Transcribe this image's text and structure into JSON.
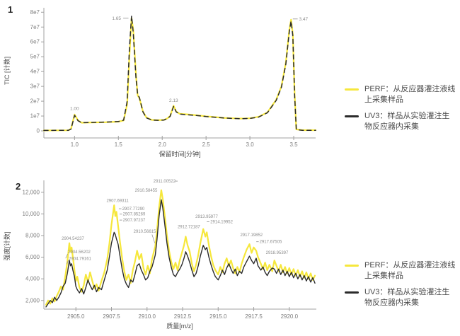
{
  "colors": {
    "perf": "#f6e73c",
    "uv3": "#2b2b2b",
    "axis": "#a0a0a0",
    "tick_text": "#7d7d7d",
    "peak_label_text": "#8c8c8c",
    "legend_text": "#4a4a4a"
  },
  "chart_data": [
    {
      "type": "line",
      "panel_number": "1",
      "xlabel": "保留时间[分钟]",
      "ylabel": "TIC [计数]",
      "xlim": [
        0.65,
        3.75
      ],
      "ylim": [
        0,
        8.3
      ],
      "y_unit_note": "y values in 1e7 counts",
      "grid": false,
      "legend_position": "right",
      "xticks": [
        1.0,
        1.5,
        2.0,
        2.5,
        3.0,
        3.5
      ],
      "xtick_labels": [
        "1.0",
        "1.5",
        "2.0",
        "2.5",
        "3.0",
        "3.5"
      ],
      "ytick_values": [
        0,
        1,
        2,
        3,
        4,
        5,
        6,
        7,
        8
      ],
      "ytick_labels": [
        "0",
        "1e7",
        "2e7",
        "3e7",
        "4e7",
        "5e7",
        "6e7",
        "7e7",
        "8e7"
      ],
      "x": [
        0.65,
        0.93,
        0.96,
        1.0,
        1.04,
        1.08,
        1.2,
        1.35,
        1.5,
        1.56,
        1.6,
        1.625,
        1.65,
        1.67,
        1.7,
        1.72,
        1.74,
        1.78,
        1.82,
        1.88,
        1.95,
        2.02,
        2.06,
        2.09,
        2.13,
        2.16,
        2.2,
        2.3,
        2.4,
        2.5,
        2.6,
        2.7,
        2.8,
        2.9,
        3.0,
        3.1,
        3.2,
        3.3,
        3.36,
        3.41,
        3.45,
        3.47,
        3.49,
        3.51,
        3.53,
        3.6,
        3.75
      ],
      "series": [
        {
          "name": "PERF",
          "label": "PERF：从反应器灌注液线上采集样品",
          "color_key": "perf",
          "style": "solid",
          "y": [
            0.03,
            0.04,
            0.15,
            1.1,
            0.7,
            0.55,
            0.57,
            0.58,
            0.62,
            0.7,
            1.8,
            5.0,
            7.6,
            6.8,
            3.8,
            2.4,
            2.2,
            1.3,
            0.9,
            0.74,
            0.72,
            0.74,
            0.85,
            1.0,
            1.7,
            1.3,
            1.15,
            1.1,
            1.05,
            0.98,
            0.93,
            0.88,
            0.85,
            0.83,
            0.85,
            0.95,
            1.25,
            2.1,
            3.0,
            4.6,
            6.8,
            7.5,
            6.5,
            2.5,
            0.1,
            0.05,
            0.05
          ]
        },
        {
          "name": "UV3",
          "label": "UV3：样品从实验灌注生物反应器内采集",
          "color_key": "uv3",
          "style": "dashed",
          "y": [
            0.03,
            0.04,
            0.12,
            1.05,
            0.68,
            0.55,
            0.57,
            0.59,
            0.63,
            0.72,
            2.0,
            5.5,
            7.75,
            6.6,
            3.6,
            2.45,
            2.25,
            1.28,
            0.88,
            0.73,
            0.71,
            0.73,
            0.84,
            0.98,
            1.65,
            1.28,
            1.13,
            1.08,
            1.03,
            0.97,
            0.92,
            0.87,
            0.84,
            0.82,
            0.84,
            0.93,
            1.22,
            2.05,
            2.95,
            4.5,
            6.7,
            7.4,
            6.4,
            2.4,
            0.08,
            0.04,
            0.04
          ]
        }
      ],
      "peak_labels": [
        {
          "text": "1.00",
          "x": 1.0,
          "y": 1.4,
          "anchor": "middle"
        },
        {
          "text": "1.65",
          "x": 1.53,
          "y": 7.5,
          "anchor": "end",
          "dash": [
            1.555,
            1.615
          ]
        },
        {
          "text": "2.13",
          "x": 2.13,
          "y": 1.95,
          "anchor": "middle"
        },
        {
          "text": "3.47",
          "x": 3.56,
          "y": 7.45,
          "anchor": "start",
          "dash": [
            3.49,
            3.545
          ]
        }
      ]
    },
    {
      "type": "line",
      "panel_number": "2",
      "xlabel": "质量[m/z]",
      "ylabel": "强度[计数]",
      "xlim": [
        2902.75,
        2921.9
      ],
      "ylim": [
        1200,
        13100
      ],
      "grid": false,
      "legend_position": "right",
      "xticks": [
        2905.0,
        2907.5,
        2910.0,
        2912.5,
        2915.0,
        2917.5,
        2920.0
      ],
      "xtick_labels": [
        "2905.0",
        "2907.5",
        "2910.0",
        "2912.5",
        "2915.0",
        "2917.5",
        "2920.0"
      ],
      "ytick_values": [
        2000,
        4000,
        6000,
        8000,
        10000,
        12000
      ],
      "ytick_labels": [
        "2,000",
        "4,000",
        "6,000",
        "8,000",
        "10,000",
        "12,000"
      ],
      "x": [
        2902.9,
        2903.05,
        2903.2,
        2903.35,
        2903.5,
        2903.65,
        2903.8,
        2903.95,
        2904.1,
        2904.25,
        2904.4,
        2904.54,
        2904.62,
        2904.7,
        2904.79,
        2904.9,
        2905.0,
        2905.1,
        2905.25,
        2905.4,
        2905.55,
        2905.7,
        2905.85,
        2906.0,
        2906.15,
        2906.3,
        2906.45,
        2906.6,
        2906.8,
        2907.0,
        2907.2,
        2907.35,
        2907.5,
        2907.69,
        2907.77,
        2907.85,
        2907.97,
        2908.1,
        2908.25,
        2908.4,
        2908.55,
        2908.7,
        2908.85,
        2909.0,
        2909.15,
        2909.3,
        2909.45,
        2909.6,
        2909.75,
        2909.9,
        2910.05,
        2910.2,
        2910.35,
        2910.5,
        2910.58,
        2910.7,
        2910.85,
        2911.0,
        2911.1,
        2911.25,
        2911.4,
        2911.55,
        2911.7,
        2911.85,
        2912.0,
        2912.15,
        2912.3,
        2912.45,
        2912.6,
        2912.72,
        2912.85,
        2913.0,
        2913.15,
        2913.3,
        2913.45,
        2913.6,
        2913.75,
        2913.95,
        2914.1,
        2914.2,
        2914.35,
        2914.5,
        2914.65,
        2914.8,
        2915.0,
        2915.15,
        2915.3,
        2915.45,
        2915.6,
        2915.75,
        2915.9,
        2916.05,
        2916.2,
        2916.35,
        2916.5,
        2916.65,
        2916.8,
        2917.0,
        2917.2,
        2917.35,
        2917.5,
        2917.67,
        2917.8,
        2918.0,
        2918.15,
        2918.3,
        2918.45,
        2918.6,
        2918.8,
        2918.95,
        2919.1,
        2919.25,
        2919.4,
        2919.55,
        2919.7,
        2919.85,
        2920.0,
        2920.15,
        2920.3,
        2920.45,
        2920.6,
        2920.75,
        2920.9,
        2921.05,
        2921.2,
        2921.35,
        2921.5,
        2921.65,
        2921.8
      ],
      "series": [
        {
          "name": "PERF",
          "label": "PERF：从反应器灌注液线上采集样品",
          "color_key": "perf",
          "style": "solid",
          "y": [
            1600,
            2000,
            1700,
            2200,
            1900,
            2400,
            2800,
            3300,
            3000,
            4200,
            5600,
            7300,
            6500,
            6900,
            6000,
            4800,
            3800,
            4200,
            3200,
            2800,
            3400,
            4400,
            3700,
            4600,
            3800,
            3100,
            3500,
            2900,
            3800,
            4600,
            5800,
            7200,
            9000,
            10800,
            9800,
            10200,
            8900,
            7400,
            5900,
            4700,
            3900,
            4400,
            3600,
            4800,
            5600,
            6600,
            5800,
            6300,
            5000,
            4400,
            5200,
            4500,
            5800,
            6600,
            7000,
            8400,
            10600,
            12200,
            11400,
            9800,
            8000,
            6600,
            5600,
            4900,
            5500,
            4800,
            5700,
            6400,
            7100,
            7900,
            7100,
            6500,
            5400,
            4700,
            5300,
            6200,
            7300,
            8600,
            7900,
            8300,
            7100,
            6100,
            5300,
            4800,
            4400,
            5100,
            4600,
            5400,
            5900,
            5200,
            5700,
            5000,
            4500,
            5100,
            4600,
            5400,
            6000,
            6700,
            7200,
            6400,
            6900,
            6600,
            6000,
            5400,
            4900,
            5500,
            4800,
            5300,
            4700,
            5700,
            5200,
            4700,
            5300,
            4600,
            5100,
            4500,
            5000,
            4400,
            4900,
            4300,
            4800,
            4200,
            4700,
            4100,
            4600,
            4000,
            4500,
            3900,
            4300
          ]
        },
        {
          "name": "UV3",
          "label": "UV3：样品从实验灌注生物反应器内采集",
          "color_key": "uv3",
          "style": "solid",
          "y": [
            1400,
            1700,
            2000,
            1800,
            2300,
            2000,
            2300,
            2700,
            3300,
            3600,
            4500,
            5700,
            5200,
            5400,
            4800,
            4200,
            3300,
            3000,
            2700,
            3100,
            2600,
            3200,
            3900,
            3400,
            3000,
            3400,
            2800,
            3200,
            3000,
            3900,
            4800,
            6000,
            7300,
            8300,
            8100,
            7700,
            7200,
            6100,
            4900,
            4000,
            3500,
            3200,
            3900,
            3700,
            4400,
            5200,
            5400,
            4800,
            4400,
            3900,
            4100,
            4700,
            5100,
            5800,
            6200,
            7600,
            9800,
            11300,
            10600,
            9000,
            7300,
            6000,
            5100,
            4400,
            4200,
            4600,
            4900,
            5300,
            5900,
            6500,
            6100,
            5500,
            4800,
            4200,
            4500,
            5200,
            6100,
            7100,
            6700,
            6900,
            6000,
            5300,
            4700,
            4200,
            3900,
            4300,
            4800,
            4400,
            5000,
            5400,
            4900,
            4500,
            4900,
            4300,
            4700,
            4500,
            5100,
            5600,
            6100,
            5700,
            5400,
            5900,
            5200,
            4800,
            5100,
            4600,
            4300,
            4700,
            5000,
            4900,
            4500,
            4900,
            4400,
            4800,
            4300,
            4700,
            4200,
            4600,
            4100,
            4500,
            4000,
            4400,
            3900,
            4300,
            3800,
            4200,
            3700,
            4100,
            3600
          ]
        }
      ],
      "peak_labels": [
        {
          "text": "2904.54237",
          "x": 2904.0,
          "y": 7600,
          "anchor": "start"
        },
        {
          "text": "2904.56202",
          "x": 2904.45,
          "y": 6350,
          "anchor": "start",
          "leader": [
            [
              2904.42,
              6300
            ],
            [
              2904.28,
              5900
            ]
          ]
        },
        {
          "text": "2904.79161",
          "x": 2904.5,
          "y": 5750,
          "anchor": "start",
          "leader": [
            [
              2904.47,
              5700
            ],
            [
              2904.35,
              5350
            ]
          ]
        },
        {
          "text": "2907.69311",
          "x": 2907.15,
          "y": 11100,
          "anchor": "start"
        },
        {
          "text": "2907.77290",
          "x": 2908.25,
          "y": 10350,
          "anchor": "start",
          "dash": [
            2908.02,
            2908.2
          ]
        },
        {
          "text": "2907.85269",
          "x": 2908.3,
          "y": 9850,
          "anchor": "start",
          "dash": [
            2908.07,
            2908.25
          ]
        },
        {
          "text": "2907.97237",
          "x": 2908.3,
          "y": 9300,
          "anchor": "start",
          "dash": [
            2908.07,
            2908.25
          ]
        },
        {
          "text": "2910.58455",
          "x": 2909.15,
          "y": 12050,
          "anchor": "start"
        },
        {
          "text": "2911.00522",
          "x": 2910.45,
          "y": 12900,
          "anchor": "start",
          "dash": [
            2911.95,
            2912.15
          ]
        },
        {
          "text": "2910.56615",
          "x": 2909.05,
          "y": 8250,
          "anchor": "start",
          "leader": [
            [
              2910.35,
              8100
            ],
            [
              2910.55,
              7300
            ]
          ]
        },
        {
          "text": "2912.72187",
          "x": 2912.15,
          "y": 8700,
          "anchor": "start"
        },
        {
          "text": "2913.95977",
          "x": 2913.4,
          "y": 9650,
          "anchor": "start"
        },
        {
          "text": "2914.19952",
          "x": 2914.45,
          "y": 9150,
          "anchor": "start",
          "dash": [
            2914.2,
            2914.38
          ]
        },
        {
          "text": "2917.19852",
          "x": 2916.55,
          "y": 7950,
          "anchor": "start"
        },
        {
          "text": "2917.67505",
          "x": 2917.9,
          "y": 7300,
          "anchor": "start",
          "dash": [
            2917.68,
            2917.85
          ]
        },
        {
          "text": "2918.95397",
          "x": 2918.35,
          "y": 6300,
          "anchor": "start"
        }
      ]
    }
  ]
}
